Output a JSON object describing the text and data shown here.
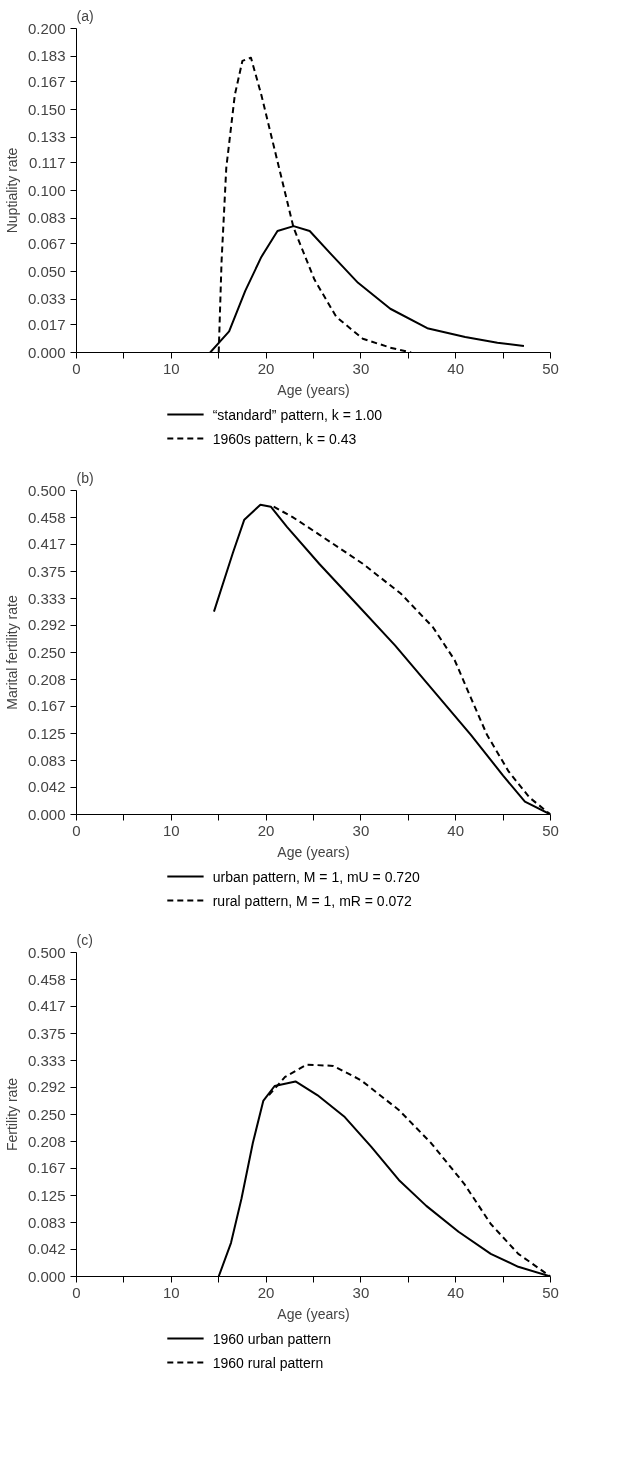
{
  "chart_data": [
    {
      "type": "line",
      "title": "(a)",
      "xlabel": "Age (years)",
      "ylabel": "Nuptiality rate",
      "legend": "bottom",
      "grid": false,
      "xlim": [
        0,
        50
      ],
      "xticks": [
        0,
        {
          "value": 5,
          "label": null
        },
        10,
        {
          "value": 15,
          "label": null
        },
        20,
        {
          "value": 25,
          "label": null
        },
        30,
        {
          "value": 35,
          "label": null
        },
        40,
        {
          "value": 45,
          "label": null
        },
        50
      ],
      "ylim": [
        0,
        0.2
      ],
      "yticks": [
        {
          "value": 0,
          "label": "0.000"
        },
        {
          "value": 0.017,
          "label": "0.017"
        },
        {
          "value": 0.033,
          "label": "0.033"
        },
        {
          "value": 0.05,
          "label": "0.050"
        },
        {
          "value": 0.067,
          "label": "0.067"
        },
        {
          "value": 0.083,
          "label": "0.083"
        },
        {
          "value": 0.1,
          "label": "0.100"
        },
        {
          "value": 0.117,
          "label": "0.117"
        },
        {
          "value": 0.133,
          "label": "0.133"
        },
        {
          "value": 0.15,
          "label": "0.150"
        },
        {
          "value": 0.167,
          "label": "0.167"
        },
        {
          "value": 0.183,
          "label": "0.183"
        },
        {
          "value": 0.2,
          "label": "0.200"
        }
      ],
      "series": [
        {
          "name": "“standard” pattern, k = 1.00",
          "color": "#000000",
          "line_style": "solid",
          "x": [
            14.1,
            16.1,
            17.8,
            19.5,
            21.2,
            22.9,
            24.6,
            26.8,
            29.7,
            33.1,
            37,
            41,
            44.4,
            47.2
          ],
          "values": [
            0,
            0.013,
            0.038,
            0.059,
            0.075,
            0.078,
            0.075,
            0.061,
            0.043,
            0.027,
            0.015,
            0.0096,
            0.006,
            0.004
          ]
        },
        {
          "name": "1960s pattern, k = 0.43",
          "color": "#000000",
          "line_style": "dashed",
          "x": [
            15,
            15.3,
            15.8,
            16.7,
            17.5,
            18.4,
            19.5,
            21.2,
            22.9,
            25.1,
            27.4,
            30.2,
            33.1,
            35.3
          ],
          "values": [
            0,
            0.056,
            0.114,
            0.159,
            0.18,
            0.182,
            0.159,
            0.118,
            0.077,
            0.045,
            0.022,
            0.0085,
            0.003,
            0
          ]
        }
      ]
    },
    {
      "type": "line",
      "title": "(b)",
      "xlabel": "Age (years)",
      "ylabel": "Marital fertility rate",
      "legend": "bottom",
      "grid": false,
      "xlim": [
        0,
        50
      ],
      "xticks": [
        0,
        {
          "value": 5,
          "label": null
        },
        10,
        {
          "value": 15,
          "label": null
        },
        20,
        {
          "value": 25,
          "label": null
        },
        30,
        {
          "value": 35,
          "label": null
        },
        40,
        {
          "value": 45,
          "label": null
        },
        50
      ],
      "ylim": [
        0,
        0.5
      ],
      "yticks": [
        {
          "value": 0,
          "label": "0.000"
        },
        {
          "value": 0.042,
          "label": "0.042"
        },
        {
          "value": 0.083,
          "label": "0.083"
        },
        {
          "value": 0.125,
          "label": "0.125"
        },
        {
          "value": 0.167,
          "label": "0.167"
        },
        {
          "value": 0.208,
          "label": "0.208"
        },
        {
          "value": 0.25,
          "label": "0.250"
        },
        {
          "value": 0.292,
          "label": "0.292"
        },
        {
          "value": 0.333,
          "label": "0.333"
        },
        {
          "value": 0.375,
          "label": "0.375"
        },
        {
          "value": 0.417,
          "label": "0.417"
        },
        {
          "value": 0.458,
          "label": "0.458"
        },
        {
          "value": 0.5,
          "label": "0.500"
        }
      ],
      "series": [
        {
          "name": "urban pattern, M = 1, mU = 0.720",
          "color": "#000000",
          "line_style": "solid",
          "x": [
            14.5,
            16.5,
            17.7,
            19.4,
            20.5,
            22.2,
            25.6,
            29.6,
            33.6,
            37.6,
            41.6,
            45,
            47.3,
            50
          ],
          "values": [
            0.313,
            0.404,
            0.455,
            0.478,
            0.475,
            0.444,
            0.387,
            0.324,
            0.261,
            0.192,
            0.123,
            0.06,
            0.02,
            0
          ]
        },
        {
          "name": "rural pattern, M = 1, mR = 0.072",
          "color": "#000000",
          "line_style": "dashed",
          "x": [
            20.8,
            22.8,
            25.6,
            30.2,
            34.2,
            37.6,
            39.9,
            41.6,
            43.3,
            45.6,
            47.8,
            50
          ],
          "values": [
            0.475,
            0.459,
            0.432,
            0.387,
            0.341,
            0.289,
            0.238,
            0.18,
            0.123,
            0.066,
            0.026,
            0
          ]
        }
      ]
    },
    {
      "type": "line",
      "title": "(c)",
      "xlabel": "Age (years)",
      "ylabel": "Fertility rate",
      "legend": "bottom",
      "grid": false,
      "xlim": [
        0,
        50
      ],
      "xticks": [
        0,
        {
          "value": 5,
          "label": null
        },
        10,
        {
          "value": 15,
          "label": null
        },
        20,
        {
          "value": 25,
          "label": null
        },
        30,
        {
          "value": 35,
          "label": null
        },
        40,
        {
          "value": 45,
          "label": null
        },
        50
      ],
      "ylim": [
        0,
        0.5
      ],
      "yticks": [
        {
          "value": 0,
          "label": "0.000"
        },
        {
          "value": 0.042,
          "label": "0.042"
        },
        {
          "value": 0.083,
          "label": "0.083"
        },
        {
          "value": 0.125,
          "label": "0.125"
        },
        {
          "value": 0.167,
          "label": "0.167"
        },
        {
          "value": 0.208,
          "label": "0.208"
        },
        {
          "value": 0.25,
          "label": "0.250"
        },
        {
          "value": 0.292,
          "label": "0.292"
        },
        {
          "value": 0.333,
          "label": "0.333"
        },
        {
          "value": 0.375,
          "label": "0.375"
        },
        {
          "value": 0.417,
          "label": "0.417"
        },
        {
          "value": 0.458,
          "label": "0.458"
        },
        {
          "value": 0.5,
          "label": "0.500"
        }
      ],
      "series": [
        {
          "name": "1960 urban pattern",
          "color": "#000000",
          "line_style": "solid",
          "x": [
            15,
            16.3,
            17.4,
            18.6,
            19.7,
            20.9,
            23.1,
            25.4,
            28.3,
            31.1,
            34,
            36.9,
            40.3,
            43.7,
            46.6,
            50
          ],
          "values": [
            0,
            0.052,
            0.12,
            0.206,
            0.271,
            0.294,
            0.301,
            0.28,
            0.246,
            0.2,
            0.149,
            0.109,
            0.069,
            0.035,
            0.015,
            0
          ]
        },
        {
          "name": "1960 rural pattern",
          "color": "#000000",
          "line_style": "dashed",
          "x": [
            20.3,
            22,
            24.3,
            27.1,
            30,
            34,
            37.4,
            40.9,
            43.7,
            46.6,
            50
          ],
          "values": [
            0.28,
            0.308,
            0.327,
            0.325,
            0.303,
            0.257,
            0.206,
            0.143,
            0.081,
            0.035,
            0
          ]
        }
      ]
    }
  ]
}
